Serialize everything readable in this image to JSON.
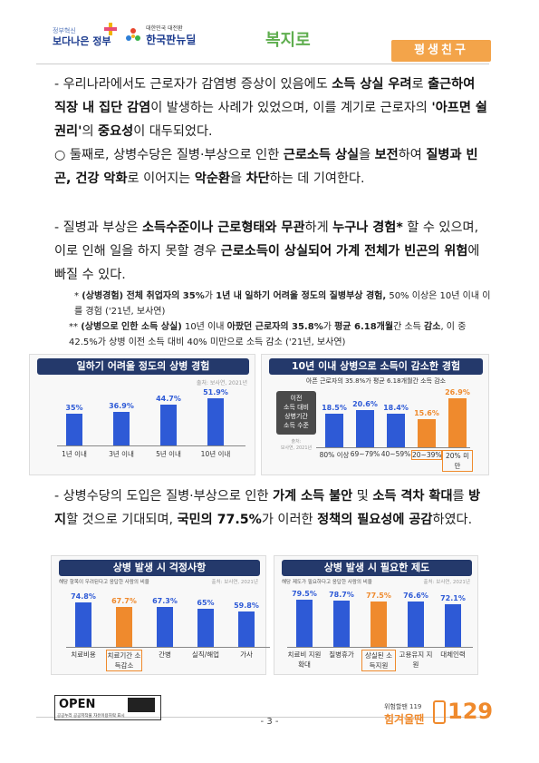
{
  "header": {
    "logo1_small": "정부혁신",
    "logo1_main": "보다나은 정부",
    "logo2_sub": "대한민국 대전환",
    "logo2_main": "한국판뉴딜",
    "bokji": "복지로",
    "tag": "평생친구"
  },
  "body": {
    "para1": [
      "- 우리나라에서도 근로자가 감염병 증상이 있음에도 ",
      "소득 상실 우려",
      "로 ",
      "출근하여 직장 내 집단 감염",
      "이 발생하는 사례가 있었으며, 이를 계기로 근로자의 ",
      "'아프면 쉴 권리'",
      "의 ",
      "중요성",
      "이 대두되었다."
    ],
    "para2": [
      "○ 둘째로, 상병수당은 질병·부상으로 인한 ",
      "근로소득 상실",
      "을 ",
      "보전",
      "하여 ",
      "질병과 빈곤, 건강 악화",
      "로 이어지는 ",
      "악순환",
      "을 ",
      "차단",
      "하는 데 기여한다."
    ],
    "para3": [
      "- 질병과 부상은 ",
      "소득수준이나 근로형태와 무관",
      "하게 ",
      "누구나 경험*",
      " 할 수 있으며, 이로 인해 일을 하지 못할 경우 ",
      "근로소득이 상실되어 가계 전체가 빈곤의 위험",
      "에 빠질 수 있다."
    ],
    "note1": [
      "* ",
      "(상병경험) 전체 취업자의 35%",
      "가 ",
      "1년 내 일하기 어려울 정도의 질병부상 경험,",
      " 50% 이상은 10년 이내 이를 경험 ('21년, 보사연)"
    ],
    "note2": [
      "** ",
      "(상병으로 인한 소득 상실)",
      " 10년 이내 ",
      "아팠던 근로자의 35.8%",
      "가 ",
      "평균 6.18개월",
      "간 소득 ",
      "감소",
      ", 이 중 42.5%가 상병 이전 소득 대비 40% 미만으로 소득 감소 ('21년, 보사연)"
    ],
    "para4": [
      "- 상병수당의 도입은 질병·부상으로 인한 ",
      "가계 소득 불안",
      " 및 ",
      "소득 격차 확대",
      "를 ",
      "방지",
      "할 것으로 기대되며, ",
      "국민의 77.5%",
      "가 이러한 ",
      "정책의 필요성에 공감",
      "하였다."
    ]
  },
  "chart_data": [
    {
      "type": "bar",
      "title": "일하기 어려울 정도의 상병 경험",
      "source": "출처: 보사연, 2021년",
      "categories": [
        "1년 이내",
        "3년 이내",
        "5년 이내",
        "10년 이내"
      ],
      "values": [
        35,
        36.9,
        44.7,
        51.9
      ],
      "labels": [
        "35%",
        "36.9%",
        "44.7%",
        "51.9%"
      ],
      "ylim": [
        0,
        60
      ]
    },
    {
      "type": "bar",
      "title": "10년 이내 상병으로 소득이 감소한 경험",
      "subtitle": "아픈 근로자의 35.8%가 평균 6.18개월간 소득 감소",
      "side_label": [
        "이전",
        "소득 대비",
        "상병기간",
        "소득 수준"
      ],
      "side_note": [
        "출처:",
        "보사연, 2021년"
      ],
      "categories": [
        "80% 이상",
        "69~79%",
        "40~59%",
        "20~39%",
        "20% 미만"
      ],
      "values": [
        18.5,
        20.6,
        18.4,
        15.6,
        26.9
      ],
      "labels": [
        "18.5%",
        "20.6%",
        "18.4%",
        "15.6%",
        "26.9%"
      ],
      "highlight": [
        false,
        false,
        false,
        true,
        true
      ],
      "ylim": [
        0,
        30
      ]
    },
    {
      "type": "bar",
      "title": "상병 발생 시 걱정사항",
      "subtitle": "해당 항목이 우려된다고 응답한 사람의 비율",
      "source": "출처: 보사연, 2021년",
      "categories": [
        "치료비용",
        "치료기간 소득감소",
        "간병",
        "실직/해업",
        "가사"
      ],
      "values": [
        74.8,
        67.7,
        67.3,
        65,
        59.8
      ],
      "labels": [
        "74.8%",
        "67.7%",
        "67.3%",
        "65%",
        "59.8%"
      ],
      "highlight": [
        false,
        true,
        false,
        false,
        false
      ],
      "ylim": [
        0,
        80
      ]
    },
    {
      "type": "bar",
      "title": "상병 발생 시 필요한 제도",
      "subtitle": "해당 제도가 필요하다고 응답한 사람의 비율",
      "source": "출처: 보사연, 2021년",
      "categories": [
        "치료비 지원 확대",
        "질병휴가",
        "상실된 소득지원",
        "고용유지 지원",
        "대체인력"
      ],
      "values": [
        79.5,
        78.7,
        77.5,
        76.6,
        72.1
      ],
      "labels": [
        "79.5%",
        "78.7%",
        "77.5%",
        "76.6%",
        "72.1%"
      ],
      "highlight": [
        false,
        false,
        true,
        false,
        false
      ],
      "ylim": [
        0,
        80
      ]
    }
  ],
  "footer": {
    "page": "- 3 -",
    "open_label": "OPEN",
    "open_sub": "공공누리  공공저작물 자유이용허락 표시",
    "helpline_small": "위험할땐 119",
    "helpline_main": "힘겨울땐",
    "helpline_num": "129"
  }
}
